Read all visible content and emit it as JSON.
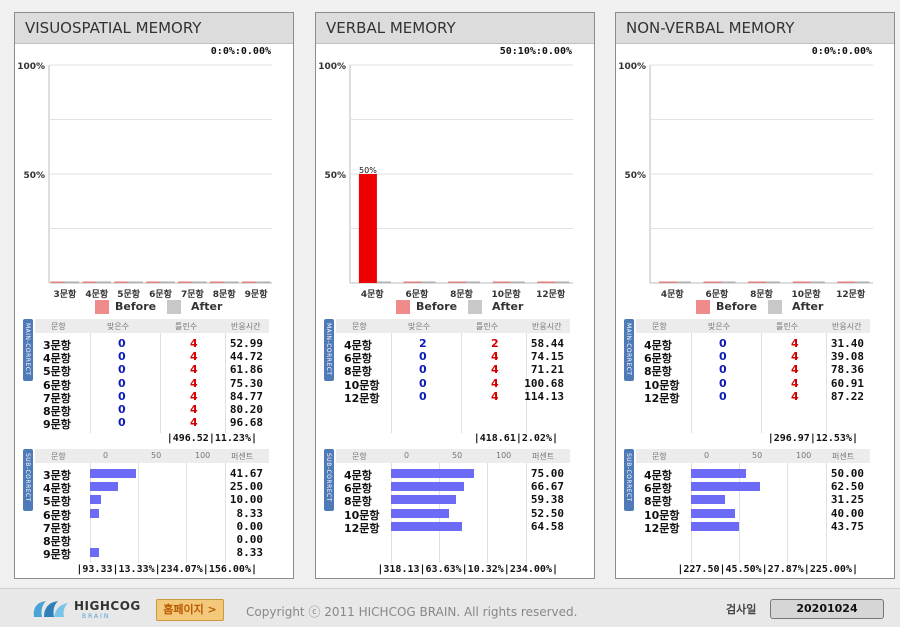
{
  "colors": {
    "before": "#f08b8b",
    "after": "#c8c8c8",
    "bar_red": "#ee0000",
    "sub_bar": "#6b6bf5"
  },
  "panels": [
    {
      "title": "VISUOSPATIAL MEMORY",
      "stat": "0:0%:0.00%",
      "chart": {
        "y_labels": [
          "100%",
          "50%"
        ],
        "categories": [
          "3문항",
          "4문항",
          "5문항",
          "6문항",
          "7문항",
          "8문항",
          "9문항"
        ],
        "before": [
          0,
          0,
          0,
          0,
          0,
          0,
          0
        ],
        "after": [
          0,
          0,
          0,
          0,
          0,
          0,
          0
        ],
        "value_label": ""
      },
      "legend": {
        "before": "Before",
        "after": "After"
      },
      "main": {
        "side": "MAIN-CORRECT",
        "headers": [
          "문항",
          "맞은수",
          "틀린수",
          "반응시간"
        ],
        "rows": [
          {
            "name": "3문항",
            "correct": "0",
            "wrong": "4",
            "time": "52.99"
          },
          {
            "name": "4문항",
            "correct": "0",
            "wrong": "4",
            "time": "44.72"
          },
          {
            "name": "5문항",
            "correct": "0",
            "wrong": "4",
            "time": "61.86"
          },
          {
            "name": "6문항",
            "correct": "0",
            "wrong": "4",
            "time": "75.30"
          },
          {
            "name": "7문항",
            "correct": "0",
            "wrong": "4",
            "time": "84.77"
          },
          {
            "name": "8문항",
            "correct": "0",
            "wrong": "4",
            "time": "80.20"
          },
          {
            "name": "9문항",
            "correct": "0",
            "wrong": "4",
            "time": "96.68"
          }
        ],
        "summary": "|496.52|11.23%|"
      },
      "sub": {
        "side": "SUB-CORRECT",
        "headers": [
          "문항",
          "0",
          "50",
          "100",
          "퍼센트"
        ],
        "rows": [
          {
            "name": "3문항",
            "value": 41.67,
            "pct": "41.67"
          },
          {
            "name": "4문항",
            "value": 25.0,
            "pct": "25.00"
          },
          {
            "name": "5문항",
            "value": 10.0,
            "pct": "10.00"
          },
          {
            "name": "6문항",
            "value": 8.33,
            "pct": "8.33"
          },
          {
            "name": "7문항",
            "value": 0.0,
            "pct": "0.00"
          },
          {
            "name": "8문항",
            "value": 0.0,
            "pct": "0.00"
          },
          {
            "name": "9문항",
            "value": 8.33,
            "pct": "8.33"
          }
        ],
        "summary": "|93.33|13.33%|234.07%|156.00%|"
      }
    },
    {
      "title": "VERBAL MEMORY",
      "stat": "50:10%:0.00%",
      "chart": {
        "y_labels": [
          "100%",
          "50%"
        ],
        "categories": [
          "4문항",
          "6문항",
          "8문항",
          "10문항",
          "12문항"
        ],
        "before": [
          50,
          0,
          0,
          0,
          0
        ],
        "after": [
          0,
          0,
          0,
          0,
          0
        ],
        "value_label": "50%"
      },
      "legend": {
        "before": "Before",
        "after": "After"
      },
      "main": {
        "side": "MAIN-CORRECT",
        "headers": [
          "문항",
          "맞은수",
          "틀린수",
          "반응시간"
        ],
        "rows": [
          {
            "name": "4문항",
            "correct": "2",
            "wrong": "2",
            "time": "58.44"
          },
          {
            "name": "6문항",
            "correct": "0",
            "wrong": "4",
            "time": "74.15"
          },
          {
            "name": "8문항",
            "correct": "0",
            "wrong": "4",
            "time": "71.21"
          },
          {
            "name": "10문항",
            "correct": "0",
            "wrong": "4",
            "time": "100.68"
          },
          {
            "name": "12문항",
            "correct": "0",
            "wrong": "4",
            "time": "114.13"
          }
        ],
        "summary": "|418.61|2.02%|"
      },
      "sub": {
        "side": "SUB-CORRECT",
        "headers": [
          "문항",
          "0",
          "50",
          "100",
          "퍼센트"
        ],
        "rows": [
          {
            "name": "4문항",
            "value": 75.0,
            "pct": "75.00"
          },
          {
            "name": "6문항",
            "value": 66.67,
            "pct": "66.67"
          },
          {
            "name": "8문항",
            "value": 59.38,
            "pct": "59.38"
          },
          {
            "name": "10문항",
            "value": 52.5,
            "pct": "52.50"
          },
          {
            "name": "12문항",
            "value": 64.58,
            "pct": "64.58"
          }
        ],
        "summary": "|318.13|63.63%|10.32%|234.00%|"
      }
    },
    {
      "title": "NON-VERBAL MEMORY",
      "stat": "0:0%:0.00%",
      "chart": {
        "y_labels": [
          "100%",
          "50%"
        ],
        "categories": [
          "4문항",
          "6문항",
          "8문항",
          "10문항",
          "12문항"
        ],
        "before": [
          0,
          0,
          0,
          0,
          0
        ],
        "after": [
          0,
          0,
          0,
          0,
          0
        ],
        "value_label": ""
      },
      "legend": {
        "before": "Before",
        "after": "After"
      },
      "main": {
        "side": "MAIN-CORRECT",
        "headers": [
          "문항",
          "맞은수",
          "틀린수",
          "반응시간"
        ],
        "rows": [
          {
            "name": "4문항",
            "correct": "0",
            "wrong": "4",
            "time": "31.40"
          },
          {
            "name": "6문항",
            "correct": "0",
            "wrong": "4",
            "time": "39.08"
          },
          {
            "name": "8문항",
            "correct": "0",
            "wrong": "4",
            "time": "78.36"
          },
          {
            "name": "10문항",
            "correct": "0",
            "wrong": "4",
            "time": "60.91"
          },
          {
            "name": "12문항",
            "correct": "0",
            "wrong": "4",
            "time": "87.22"
          }
        ],
        "summary": "|296.97|12.53%|"
      },
      "sub": {
        "side": "SUB-CORRECT",
        "headers": [
          "문항",
          "0",
          "50",
          "100",
          "퍼센트"
        ],
        "rows": [
          {
            "name": "4문항",
            "value": 50.0,
            "pct": "50.00"
          },
          {
            "name": "6문항",
            "value": 62.5,
            "pct": "62.50"
          },
          {
            "name": "8문항",
            "value": 31.25,
            "pct": "31.25"
          },
          {
            "name": "10문항",
            "value": 40.0,
            "pct": "40.00"
          },
          {
            "name": "12문항",
            "value": 43.75,
            "pct": "43.75"
          }
        ],
        "summary": "|227.50|45.50%|27.87%|225.00%|"
      }
    }
  ],
  "chart_data": [
    {
      "type": "bar",
      "categories": [
        "3문항",
        "4문항",
        "5문항",
        "6문항",
        "7문항",
        "8문항",
        "9문항"
      ],
      "series": [
        {
          "name": "Before",
          "values": [
            0,
            0,
            0,
            0,
            0,
            0,
            0
          ]
        },
        {
          "name": "After",
          "values": [
            0,
            0,
            0,
            0,
            0,
            0,
            0
          ]
        }
      ],
      "title": "VISUOSPATIAL MEMORY",
      "ylim": [
        0,
        100
      ]
    },
    {
      "type": "bar",
      "categories": [
        "4문항",
        "6문항",
        "8문항",
        "10문항",
        "12문항"
      ],
      "series": [
        {
          "name": "Before",
          "values": [
            50,
            0,
            0,
            0,
            0
          ]
        },
        {
          "name": "After",
          "values": [
            0,
            0,
            0,
            0,
            0
          ]
        }
      ],
      "title": "VERBAL MEMORY",
      "ylim": [
        0,
        100
      ]
    },
    {
      "type": "bar",
      "categories": [
        "4문항",
        "6문항",
        "8문항",
        "10문항",
        "12문항"
      ],
      "series": [
        {
          "name": "Before",
          "values": [
            0,
            0,
            0,
            0,
            0
          ]
        },
        {
          "name": "After",
          "values": [
            0,
            0,
            0,
            0,
            0
          ]
        }
      ],
      "title": "NON-VERBAL MEMORY",
      "ylim": [
        0,
        100
      ]
    }
  ],
  "footer": {
    "logo_text": "HIGHCOG",
    "logo_sub": "BRAIN",
    "home_label": "홈페이지 >",
    "copyright": "Copyright ⓒ 2011 HICHCOG BRAIN. All rights reserved.",
    "date_label": "검사일",
    "date_value": "20201024"
  }
}
